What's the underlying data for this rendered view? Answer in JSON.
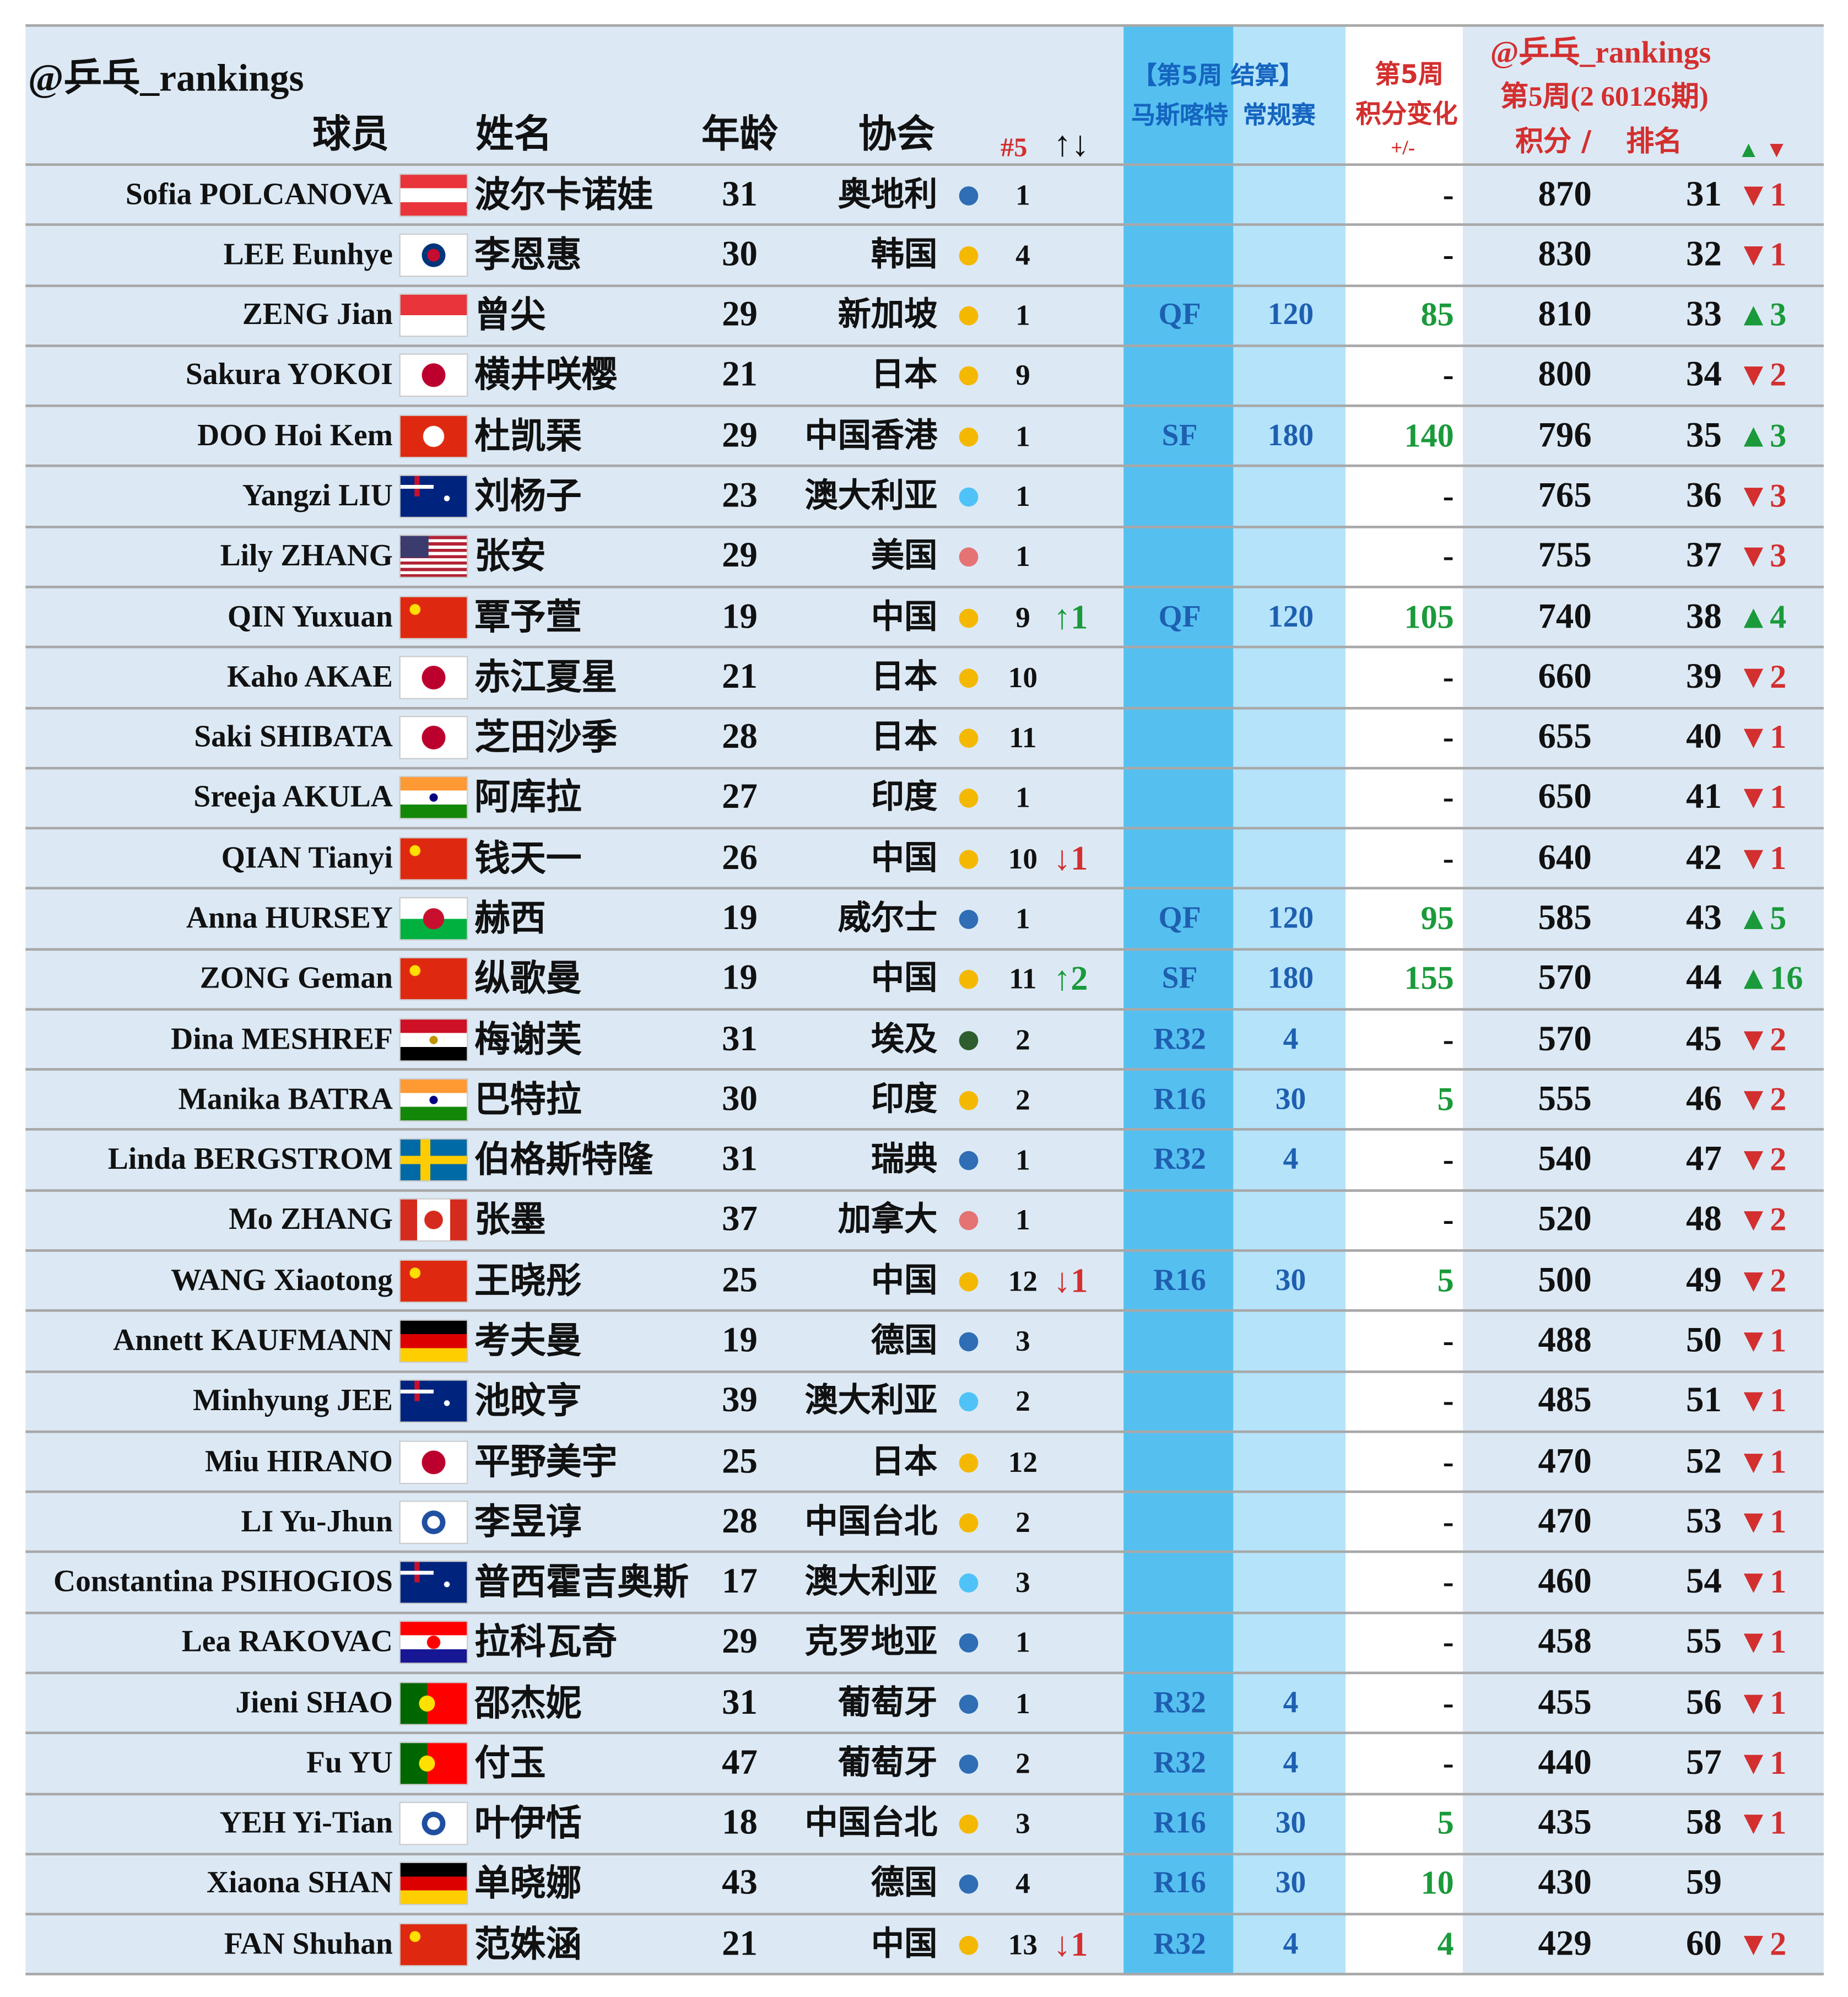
{
  "header": {
    "handle": "@乒乓_rankings",
    "player": "球员",
    "name": "姓名",
    "age": "年龄",
    "assoc": "协会",
    "seed": "#5",
    "move": "↑↓",
    "event_title": "【第5周 结算】",
    "event_name": "马斯喀特",
    "event_type": "常规赛",
    "change_week": "第5周",
    "change_title": "积分变化",
    "change_sign": "+/-",
    "rank_handle": "@乒乓_rankings",
    "rank_week": "第5周(2 60126期)",
    "points": "积分 /",
    "rank": "排名",
    "up": "▲",
    "down": "▼"
  },
  "table": {
    "rows": [
      [
        "Sofia POLCANOVA",
        "波尔卡诺娃",
        31,
        "奥地利",
        "#2f6db5",
        1,
        null,
        null,
        null,
        "-",
        870,
        31,
        "▼1"
      ],
      [
        "LEE Eunhye",
        "李恩惠",
        30,
        "韩国",
        "#f5b800",
        4,
        null,
        null,
        null,
        "-",
        830,
        32,
        "▼1"
      ],
      [
        "ZENG Jian",
        "曾尖",
        29,
        "新加坡",
        "#f5b800",
        1,
        null,
        "QF",
        120,
        85,
        810,
        33,
        "▲3"
      ],
      [
        "Sakura YOKOI",
        "横井咲樱",
        21,
        "日本",
        "#f5b800",
        9,
        null,
        null,
        null,
        "-",
        800,
        34,
        "▼2"
      ],
      [
        "DOO Hoi Kem",
        "杜凯琹",
        29,
        "中国香港",
        "#f5b800",
        1,
        null,
        "SF",
        180,
        140,
        796,
        35,
        "▲3"
      ],
      [
        "Yangzi LIU",
        "刘杨子",
        23,
        "澳大利亚",
        "#4fc3f7",
        1,
        null,
        null,
        null,
        "-",
        765,
        36,
        "▼3"
      ],
      [
        "Lily ZHANG",
        "张安",
        29,
        "美国",
        "#e57373",
        1,
        null,
        null,
        null,
        "-",
        755,
        37,
        "▼3"
      ],
      [
        "QIN Yuxuan",
        "覃予萱",
        19,
        "中国",
        "#f5b800",
        9,
        "↑1",
        "QF",
        120,
        105,
        740,
        38,
        "▲4"
      ],
      [
        "Kaho AKAE",
        "赤江夏星",
        21,
        "日本",
        "#f5b800",
        10,
        null,
        null,
        null,
        "-",
        660,
        39,
        "▼2"
      ],
      [
        "Saki SHIBATA",
        "芝田沙季",
        28,
        "日本",
        "#f5b800",
        11,
        null,
        null,
        null,
        "-",
        655,
        40,
        "▼1"
      ],
      [
        "Sreeja AKULA",
        "阿库拉",
        27,
        "印度",
        "#f5b800",
        1,
        null,
        null,
        null,
        "-",
        650,
        41,
        "▼1"
      ],
      [
        "QIAN Tianyi",
        "钱天一",
        26,
        "中国",
        "#f5b800",
        10,
        "↓1",
        null,
        null,
        "-",
        640,
        42,
        "▼1"
      ],
      [
        "Anna HURSEY",
        "赫西",
        19,
        "威尔士",
        "#2f6db5",
        1,
        null,
        "QF",
        120,
        95,
        585,
        43,
        "▲5"
      ],
      [
        "ZONG Geman",
        "纵歌曼",
        19,
        "中国",
        "#f5b800",
        11,
        "↑2",
        "SF",
        180,
        155,
        570,
        44,
        "▲16"
      ],
      [
        "Dina MESHREF",
        "梅谢芙",
        31,
        "埃及",
        "#2e5e2e",
        2,
        null,
        "R32",
        4,
        "-",
        570,
        45,
        "▼2"
      ],
      [
        "Manika BATRA",
        "巴特拉",
        30,
        "印度",
        "#f5b800",
        2,
        null,
        "R16",
        30,
        5,
        555,
        46,
        "▼2"
      ],
      [
        "Linda BERGSTROM",
        "伯格斯特隆",
        31,
        "瑞典",
        "#2f6db5",
        1,
        null,
        "R32",
        4,
        "-",
        540,
        47,
        "▼2"
      ],
      [
        "Mo ZHANG",
        "张墨",
        37,
        "加拿大",
        "#e57373",
        1,
        null,
        null,
        null,
        "-",
        520,
        48,
        "▼2"
      ],
      [
        "WANG Xiaotong",
        "王晓彤",
        25,
        "中国",
        "#f5b800",
        12,
        "↓1",
        "R16",
        30,
        5,
        500,
        49,
        "▼2"
      ],
      [
        "Annett KAUFMANN",
        "考夫曼",
        19,
        "德国",
        "#2f6db5",
        3,
        null,
        null,
        null,
        "-",
        488,
        50,
        "▼1"
      ],
      [
        "Minhyung JEE",
        "池旼亨",
        39,
        "澳大利亚",
        "#4fc3f7",
        2,
        null,
        null,
        null,
        "-",
        485,
        51,
        "▼1"
      ],
      [
        "Miu HIRANO",
        "平野美宇",
        25,
        "日本",
        "#f5b800",
        12,
        null,
        null,
        null,
        "-",
        470,
        52,
        "▼1"
      ],
      [
        "LI Yu-Jhun",
        "李昱谆",
        28,
        "中国台北",
        "#f5b800",
        2,
        null,
        null,
        null,
        "-",
        470,
        53,
        "▼1"
      ],
      [
        "Constantina PSIHOGIOS",
        "普西霍吉奥斯",
        17,
        "澳大利亚",
        "#4fc3f7",
        3,
        null,
        null,
        null,
        "-",
        460,
        54,
        "▼1"
      ],
      [
        "Lea RAKOVAC",
        "拉科瓦奇",
        29,
        "克罗地亚",
        "#2f6db5",
        1,
        null,
        null,
        null,
        "-",
        458,
        55,
        "▼1"
      ],
      [
        "Jieni SHAO",
        "邵杰妮",
        31,
        "葡萄牙",
        "#2f6db5",
        1,
        null,
        "R32",
        4,
        "-",
        455,
        56,
        "▼1"
      ],
      [
        "Fu YU",
        "付玉",
        47,
        "葡萄牙",
        "#2f6db5",
        2,
        null,
        "R32",
        4,
        "-",
        440,
        57,
        "▼1"
      ],
      [
        "YEH Yi-Tian",
        "叶伊恬",
        18,
        "中国台北",
        "#f5b800",
        3,
        null,
        "R16",
        30,
        5,
        435,
        58,
        "▼1"
      ],
      [
        "Xiaona SHAN",
        "单晓娜",
        43,
        "德国",
        "#2f6db5",
        4,
        null,
        "R16",
        30,
        10,
        430,
        59,
        null
      ],
      [
        "FAN Shuhan",
        "范姝涵",
        21,
        "中国",
        "#f5b800",
        13,
        "↓1",
        "R32",
        4,
        4,
        429,
        60,
        "▼2"
      ]
    ]
  }
}
